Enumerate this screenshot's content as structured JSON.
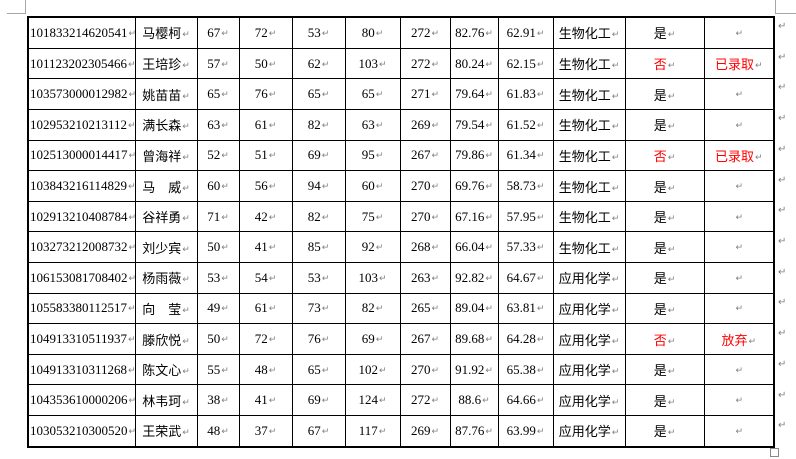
{
  "document": {
    "marks": {
      "paragraph_mark_glyph": "↵"
    },
    "colors": {
      "border": "#000000",
      "text": "#000000",
      "highlight_red": "#ff0000",
      "formatting_mark_gray": "#808080",
      "margin_crop_gray": "#a6a6a6",
      "handle_gray": "#8a8a8a"
    },
    "table": {
      "rows": [
        {
          "red": false,
          "cells": [
            "101833214620541",
            "马樱柯",
            "67",
            "72",
            "53",
            "80",
            "272",
            "82.76",
            "62.91",
            "生物化工",
            "是",
            ""
          ]
        },
        {
          "red": true,
          "cells": [
            "101123202305466",
            "王培珍",
            "57",
            "50",
            "62",
            "103",
            "272",
            "80.24",
            "62.15",
            "生物化工",
            "否",
            "已录取"
          ]
        },
        {
          "red": false,
          "cells": [
            "103573000012982",
            "姚苗苗",
            "65",
            "76",
            "65",
            "65",
            "271",
            "79.64",
            "61.83",
            "生物化工",
            "是",
            ""
          ]
        },
        {
          "red": false,
          "cells": [
            "102953210213112",
            "满长森",
            "63",
            "61",
            "82",
            "63",
            "269",
            "79.54",
            "61.52",
            "生物化工",
            "是",
            ""
          ]
        },
        {
          "red": true,
          "cells": [
            "102513000014417",
            "曾海祥",
            "52",
            "51",
            "69",
            "95",
            "267",
            "79.86",
            "61.34",
            "生物化工",
            "否",
            "已录取"
          ]
        },
        {
          "red": false,
          "cells": [
            "103843216114829",
            "马　威",
            "60",
            "56",
            "94",
            "60",
            "270",
            "69.76",
            "58.73",
            "生物化工",
            "是",
            ""
          ]
        },
        {
          "red": false,
          "cells": [
            "102913210408784",
            "谷祥勇",
            "71",
            "42",
            "82",
            "75",
            "270",
            "67.16",
            "57.95",
            "生物化工",
            "是",
            ""
          ]
        },
        {
          "red": false,
          "cells": [
            "103273212008732",
            "刘少宾",
            "50",
            "41",
            "85",
            "92",
            "268",
            "66.04",
            "57.33",
            "生物化工",
            "是",
            ""
          ]
        },
        {
          "red": false,
          "cells": [
            "106153081708402",
            "杨雨薇",
            "53",
            "54",
            "53",
            "103",
            "263",
            "92.82",
            "64.67",
            "应用化学",
            "是",
            ""
          ]
        },
        {
          "red": false,
          "cells": [
            "105583380112517",
            "向　莹",
            "49",
            "61",
            "73",
            "82",
            "265",
            "89.04",
            "63.81",
            "应用化学",
            "是",
            ""
          ]
        },
        {
          "red": true,
          "cells": [
            "104913310511937",
            "滕欣悦",
            "50",
            "72",
            "76",
            "69",
            "267",
            "89.68",
            "64.28",
            "应用化学",
            "否",
            "放弃"
          ]
        },
        {
          "red": false,
          "cells": [
            "104913310311268",
            "陈文心",
            "55",
            "48",
            "65",
            "102",
            "270",
            "91.92",
            "65.38",
            "应用化学",
            "是",
            ""
          ]
        },
        {
          "red": false,
          "cells": [
            "104353610000206",
            "林韦珂",
            "38",
            "41",
            "69",
            "124",
            "272",
            "88.6",
            "64.66",
            "应用化学",
            "是",
            ""
          ]
        },
        {
          "red": false,
          "cells": [
            "103053210300520",
            "王荣武",
            "48",
            "37",
            "67",
            "117",
            "269",
            "87.76",
            "63.99",
            "应用化学",
            "是",
            ""
          ]
        }
      ]
    }
  }
}
